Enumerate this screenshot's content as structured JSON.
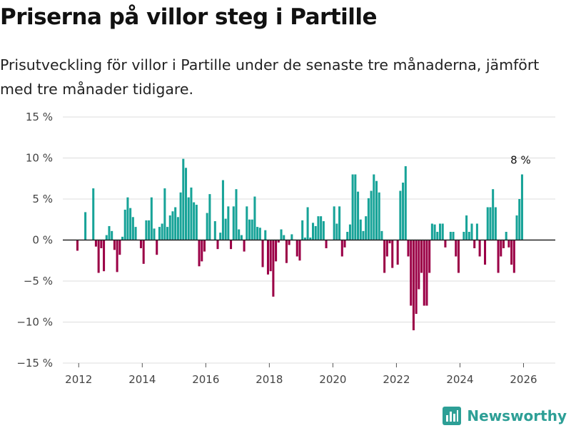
{
  "title": "Priserna på villor steg i Partille",
  "subtitle": "Prisutveckling för villor i Partille under de senaste tre månaderna, jämfört med tre månader tidigare.",
  "brand": {
    "name": "Newsworthy",
    "icon": "bar-chart-logo-icon",
    "color": "#2d9f96"
  },
  "colors": {
    "positive": "#17a398",
    "negative": "#9b0046",
    "grid": "#dddddd",
    "zero_line": "#222222"
  },
  "chart_data": {
    "type": "bar",
    "title": "Priserna på villor steg i Partille",
    "xlabel": "",
    "ylabel": "",
    "ylim": [
      -15,
      15
    ],
    "yticks": [
      15,
      10,
      5,
      0,
      -5,
      -10,
      -15
    ],
    "ytick_labels": [
      "15 %",
      "10 %",
      "5 %",
      "0 %",
      "−5 %",
      "−10 %",
      "−15 %"
    ],
    "xlim": [
      2011.5,
      2027.0
    ],
    "xticks": [
      2012,
      2014,
      2016,
      2018,
      2020,
      2022,
      2024,
      2026
    ],
    "xtick_labels": [
      "2012",
      "2014",
      "2016",
      "2018",
      "2020",
      "2022",
      "2024",
      "2026"
    ],
    "start": 2011.96,
    "step": 0.0833,
    "values": [
      -1.3,
      0,
      0,
      3.4,
      0,
      0,
      6.3,
      -0.8,
      -4,
      -1,
      -3.8,
      0.6,
      1.7,
      1.1,
      -1.2,
      -3.9,
      -1.8,
      0.4,
      3.7,
      5.2,
      3.9,
      2.8,
      1.6,
      0,
      -1,
      -2.9,
      2.4,
      2.4,
      5.2,
      1.4,
      -1.8,
      1.6,
      2,
      6.3,
      1.6,
      3,
      3.5,
      4,
      2.8,
      5.8,
      9.9,
      8.8,
      5.2,
      6.4,
      4.6,
      4.3,
      -3.2,
      -2.6,
      -1.4,
      3.3,
      5.6,
      0,
      2.3,
      -1.1,
      0.9,
      7.3,
      2.6,
      4.1,
      -1.1,
      4.1,
      6.2,
      1.3,
      0.6,
      -1.4,
      4.1,
      2.5,
      2.5,
      5.3,
      1.6,
      1.5,
      -3.3,
      1.2,
      -4.2,
      -3.8,
      -6.9,
      -2.6,
      -0.3,
      1.3,
      0.6,
      -2.8,
      -0.6,
      0.7,
      0,
      -2,
      -2.5,
      2.4,
      0.3,
      4,
      0.3,
      2.1,
      1.7,
      2.9,
      2.9,
      2.3,
      -1,
      0,
      0,
      4.1,
      2,
      4.1,
      -2,
      -0.9,
      1,
      1.9,
      8,
      8,
      5.9,
      2.5,
      1.1,
      2.9,
      5.1,
      6,
      8,
      7.2,
      5.8,
      1.1,
      -4,
      -2,
      -0.4,
      -3.4,
      0,
      -3,
      6,
      7,
      9,
      -2,
      -8,
      -11,
      -9,
      -6,
      -4,
      -8,
      -8,
      -4,
      2,
      1.9,
      1,
      2,
      2,
      -0.9,
      0,
      1,
      1,
      -2,
      -4,
      0,
      1,
      3,
      1,
      2,
      -1,
      2,
      -2,
      0,
      -3,
      4,
      4,
      6.2,
      4,
      -4,
      -2,
      -1,
      1,
      -0.9,
      -3,
      -4,
      3,
      5,
      8
    ],
    "annotation": {
      "text": "8 %",
      "target": "last"
    }
  }
}
